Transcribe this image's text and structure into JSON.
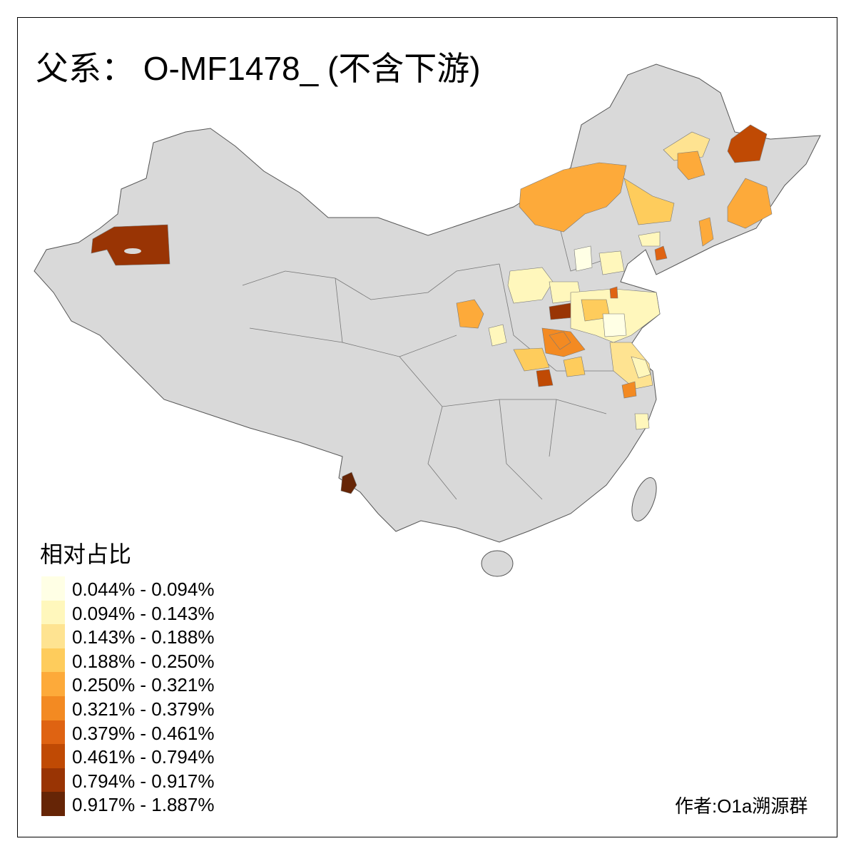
{
  "title": "父系： O-MF1478_ (不含下游)",
  "legend": {
    "title": "相对占比",
    "items": [
      {
        "label": "0.044% - 0.094%",
        "color": "#FFFFE5"
      },
      {
        "label": "0.094% - 0.143%",
        "color": "#FFF7BC"
      },
      {
        "label": "0.143% - 0.188%",
        "color": "#FEE391"
      },
      {
        "label": "0.188% - 0.250%",
        "color": "#FECC5C"
      },
      {
        "label": "0.250% - 0.321%",
        "color": "#FDAA3A"
      },
      {
        "label": "0.321% - 0.379%",
        "color": "#F38A22"
      },
      {
        "label": "0.379% - 0.461%",
        "color": "#DF6312"
      },
      {
        "label": "0.461% - 0.794%",
        "color": "#C04A04"
      },
      {
        "label": "0.794% - 0.917%",
        "color": "#993404"
      },
      {
        "label": "0.917% - 1.887%",
        "color": "#662506"
      }
    ]
  },
  "map": {
    "base_color": "#D9D9D9",
    "border_color": "#555555"
  },
  "credit": "作者:O1a溯源群"
}
